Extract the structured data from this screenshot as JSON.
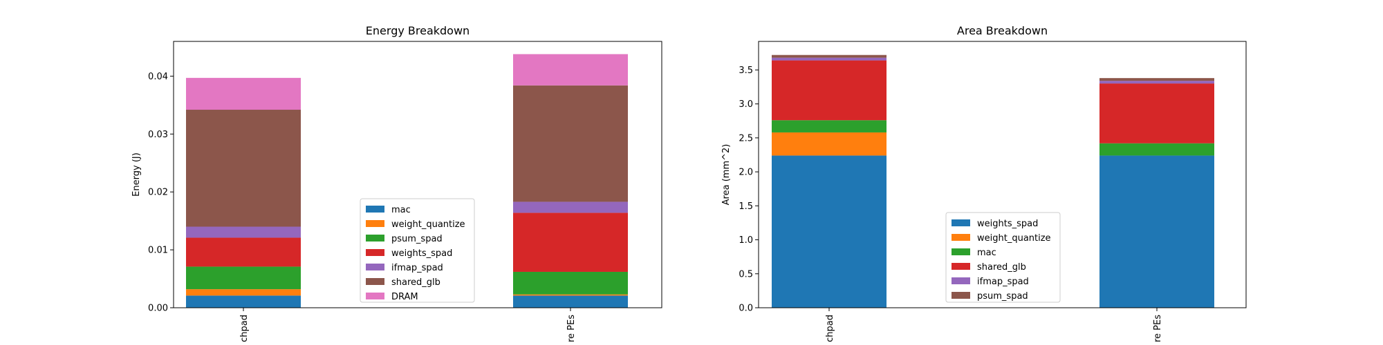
{
  "chart_data": [
    {
      "type": "bar",
      "stacked": true,
      "title": "Energy Breakdown",
      "xlabel": "",
      "ylabel": "Energy (J)",
      "ylim": [
        0,
        0.046
      ],
      "yticks": [
        "0.00",
        "0.01",
        "0.02",
        "0.03",
        "0.04"
      ],
      "categories": [
        "chpad",
        "re PEs"
      ],
      "legend_position": "lower-center",
      "series": [
        {
          "name": "mac",
          "color": "#1f77b4",
          "values": [
            0.0021,
            0.0021
          ]
        },
        {
          "name": "weight_quantize",
          "color": "#ff7f0e",
          "values": [
            0.0011,
            0.0002
          ]
        },
        {
          "name": "psum_spad",
          "color": "#2ca02c",
          "values": [
            0.0039,
            0.0039
          ]
        },
        {
          "name": "weights_spad",
          "color": "#d62728",
          "values": [
            0.005,
            0.0102
          ]
        },
        {
          "name": "ifmap_spad",
          "color": "#9467bd",
          "values": [
            0.0019,
            0.0019
          ]
        },
        {
          "name": "shared_glb",
          "color": "#8c564b",
          "values": [
            0.0202,
            0.0201
          ]
        },
        {
          "name": "DRAM",
          "color": "#e377c2",
          "values": [
            0.0055,
            0.0054
          ]
        }
      ]
    },
    {
      "type": "bar",
      "stacked": true,
      "title": "Area Breakdown",
      "xlabel": "",
      "ylabel": "Area (mm^2)",
      "ylim": [
        0,
        3.92
      ],
      "yticks": [
        "0.0",
        "0.5",
        "1.0",
        "1.5",
        "2.0",
        "2.5",
        "3.0",
        "3.5"
      ],
      "categories": [
        "chpad",
        "re PEs"
      ],
      "legend_position": "lower-center",
      "series": [
        {
          "name": "weights_spad",
          "color": "#1f77b4",
          "values": [
            2.24,
            2.24
          ]
        },
        {
          "name": "weight_quantize",
          "color": "#ff7f0e",
          "values": [
            0.34,
            0.0
          ]
        },
        {
          "name": "mac",
          "color": "#2ca02c",
          "values": [
            0.18,
            0.18
          ]
        },
        {
          "name": "shared_glb",
          "color": "#d62728",
          "values": [
            0.88,
            0.88
          ]
        },
        {
          "name": "ifmap_spad",
          "color": "#9467bd",
          "values": [
            0.04,
            0.04
          ]
        },
        {
          "name": "psum_spad",
          "color": "#8c564b",
          "values": [
            0.04,
            0.04
          ]
        }
      ]
    }
  ]
}
